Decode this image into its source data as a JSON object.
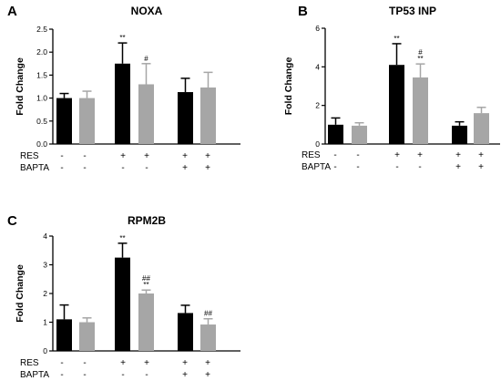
{
  "chart_data": [
    {
      "type": "bar",
      "panel": "A",
      "title": "NOXA",
      "ylabel": "Fold Change",
      "ylim": [
        0,
        2.5
      ],
      "yticks": [
        "0.0",
        "0.5",
        "1.0",
        "1.5",
        "2.0",
        "2.5"
      ],
      "conditions": [
        {
          "name": "RES",
          "signs": [
            "-",
            "-",
            "+",
            "+",
            "+",
            "+"
          ]
        },
        {
          "name": "BAPTA",
          "signs": [
            "-",
            "-",
            "-",
            "-",
            "+",
            "+"
          ]
        }
      ],
      "bars": [
        {
          "value": 1.0,
          "error": 0.1,
          "color": "#000000",
          "label": ""
        },
        {
          "value": 1.0,
          "error": 0.15,
          "color": "#a6a6a6",
          "label": ""
        },
        {
          "value": 1.75,
          "error": 0.45,
          "color": "#000000",
          "label": "**"
        },
        {
          "value": 1.3,
          "error": 0.45,
          "color": "#a6a6a6",
          "label": "#"
        },
        {
          "value": 1.13,
          "error": 0.3,
          "color": "#000000",
          "label": ""
        },
        {
          "value": 1.23,
          "error": 0.33,
          "color": "#a6a6a6",
          "label": ""
        }
      ]
    },
    {
      "type": "bar",
      "panel": "B",
      "title": "TP53 INP",
      "ylabel": "Fold Change",
      "ylim": [
        0,
        6
      ],
      "yticks": [
        "0",
        "2",
        "4",
        "6"
      ],
      "conditions": [
        {
          "name": "RES",
          "signs": [
            "-",
            "-",
            "+",
            "+",
            "+",
            "+"
          ]
        },
        {
          "name": "BAPTA",
          "signs": [
            "-",
            "-",
            "-",
            "-",
            "+",
            "+"
          ]
        }
      ],
      "bars": [
        {
          "value": 1.0,
          "error": 0.35,
          "color": "#000000",
          "label": ""
        },
        {
          "value": 0.95,
          "error": 0.15,
          "color": "#a6a6a6",
          "label": ""
        },
        {
          "value": 4.1,
          "error": 1.1,
          "color": "#000000",
          "label": "**"
        },
        {
          "value": 3.45,
          "error": 0.7,
          "color": "#a6a6a6",
          "label": "#\n**"
        },
        {
          "value": 0.95,
          "error": 0.2,
          "color": "#000000",
          "label": ""
        },
        {
          "value": 1.6,
          "error": 0.3,
          "color": "#a6a6a6",
          "label": ""
        }
      ]
    },
    {
      "type": "bar",
      "panel": "C",
      "title": "RPM2B",
      "ylabel": "Fold Change",
      "ylim": [
        0,
        4
      ],
      "yticks": [
        "0",
        "1",
        "2",
        "3",
        "4"
      ],
      "conditions": [
        {
          "name": "RES",
          "signs": [
            "-",
            "-",
            "+",
            "+",
            "+",
            "+"
          ]
        },
        {
          "name": "BAPTA",
          "signs": [
            "-",
            "-",
            "-",
            "-",
            "+",
            "+"
          ]
        }
      ],
      "bars": [
        {
          "value": 1.1,
          "error": 0.5,
          "color": "#000000",
          "label": ""
        },
        {
          "value": 1.0,
          "error": 0.15,
          "color": "#a6a6a6",
          "label": ""
        },
        {
          "value": 3.25,
          "error": 0.5,
          "color": "#000000",
          "label": "**"
        },
        {
          "value": 2.0,
          "error": 0.12,
          "color": "#a6a6a6",
          "label": "##\n**"
        },
        {
          "value": 1.32,
          "error": 0.27,
          "color": "#000000",
          "label": ""
        },
        {
          "value": 0.92,
          "error": 0.2,
          "color": "#a6a6a6",
          "label": "##"
        }
      ]
    }
  ]
}
